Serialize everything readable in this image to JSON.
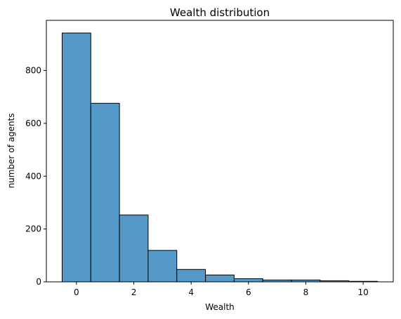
{
  "chart_data": {
    "type": "bar",
    "title": "Wealth distribution",
    "xlabel": "Wealth",
    "ylabel": "number of agents",
    "bins": [
      {
        "center": 0,
        "value": 942
      },
      {
        "center": 1,
        "value": 676
      },
      {
        "center": 2,
        "value": 253
      },
      {
        "center": 3,
        "value": 119
      },
      {
        "center": 4,
        "value": 47
      },
      {
        "center": 5,
        "value": 26
      },
      {
        "center": 6,
        "value": 12
      },
      {
        "center": 7,
        "value": 7
      },
      {
        "center": 8,
        "value": 7
      },
      {
        "center": 9,
        "value": 4
      },
      {
        "center": 10,
        "value": 2
      }
    ],
    "bin_width": 1,
    "xlim": [
      -1.05,
      11.05
    ],
    "ylim": [
      0,
      990
    ],
    "xticks": [
      0,
      2,
      4,
      6,
      8,
      10
    ],
    "yticks": [
      0,
      200,
      400,
      600,
      800
    ],
    "bar_color": "#5499c7",
    "edge_color": "#000000",
    "grid": false,
    "legend": "none"
  }
}
